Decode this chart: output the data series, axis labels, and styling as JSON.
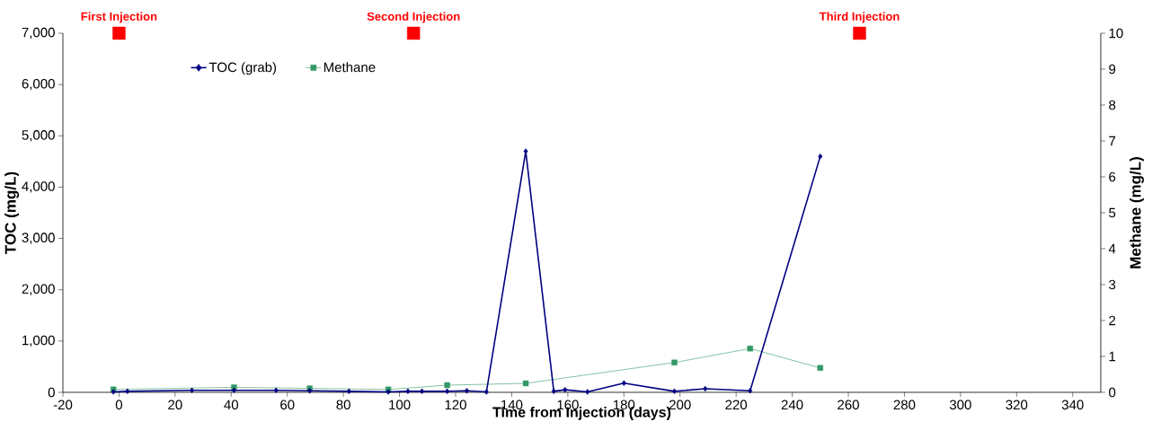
{
  "chart_data": {
    "type": "line",
    "xlabel": "Time from Injection (days)",
    "ylabel": "TOC (mg/L)",
    "y2label": "Methane (mg/L)",
    "xlim": [
      -20,
      350
    ],
    "xticks": [
      -20,
      0,
      20,
      40,
      60,
      80,
      100,
      120,
      140,
      160,
      180,
      200,
      220,
      240,
      260,
      280,
      300,
      320,
      340
    ],
    "ylim": [
      0,
      7000
    ],
    "yticks": [
      0,
      {
        "value": 1000,
        "label": "1,000"
      },
      {
        "value": 2000,
        "label": "2,000"
      },
      {
        "value": 3000,
        "label": "3,000"
      },
      {
        "value": 4000,
        "label": "4,000"
      },
      {
        "value": 5000,
        "label": "5,000"
      },
      {
        "value": 6000,
        "label": "6,000"
      },
      {
        "value": 7000,
        "label": "7,000"
      }
    ],
    "y2lim": [
      0,
      10
    ],
    "y2ticks": [
      0,
      1,
      2,
      3,
      4,
      5,
      6,
      7,
      8,
      9,
      10
    ],
    "grid": false,
    "legend": "top left",
    "series": [
      {
        "name": "TOC (grab)",
        "color": "#000080",
        "marker": "diamond",
        "x": [
          -2,
          3,
          26,
          41,
          56,
          68,
          82,
          96,
          103,
          108,
          117,
          124,
          131,
          145,
          155,
          159,
          167,
          180,
          198,
          209,
          225,
          250
        ],
        "values": [
          10,
          20,
          40,
          40,
          40,
          30,
          20,
          10,
          20,
          20,
          20,
          30,
          10,
          4700,
          20,
          50,
          10,
          180,
          20,
          70,
          30,
          4600
        ]
      },
      {
        "name": "Methane",
        "color": "#339966",
        "marker": "square",
        "axis": "y2",
        "x": [
          -2,
          41,
          68,
          96,
          117,
          145,
          198,
          225,
          250
        ],
        "values": [
          0.08,
          0.14,
          0.11,
          0.08,
          0.2,
          0.25,
          0.83,
          1.22,
          0.68
        ]
      },
      {
        "type": "scatter",
        "color": "#ff0000",
        "marker": "square",
        "x": [
          0,
          105,
          264
        ],
        "values": [
          7000,
          7000,
          7000
        ]
      }
    ],
    "annotations": [
      {
        "text": "First Injection",
        "x": 0,
        "y": 7000
      },
      {
        "text": "Second Injection",
        "x": 105,
        "y": 7000
      },
      {
        "text": "Third Injection",
        "x": 264,
        "y": 7000
      }
    ]
  }
}
